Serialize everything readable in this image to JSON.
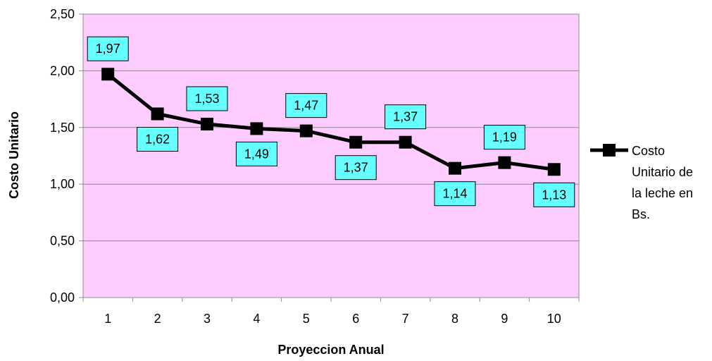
{
  "chart_data": {
    "type": "line",
    "x": [
      1,
      2,
      3,
      4,
      5,
      6,
      7,
      8,
      9,
      10
    ],
    "x_tick_labels": [
      "1",
      "2",
      "3",
      "4",
      "5",
      "6",
      "7",
      "8",
      "9",
      "10"
    ],
    "series": [
      {
        "name": "Costo Unitario de la leche en Bs.",
        "legend_lines": [
          "Costo",
          "Unitario de",
          "la leche en",
          "Bs."
        ],
        "values": [
          1.97,
          1.62,
          1.53,
          1.49,
          1.47,
          1.37,
          1.37,
          1.14,
          1.19,
          1.13
        ],
        "data_labels": [
          "1,97",
          "1,62",
          "1,53",
          "1,49",
          "1,47",
          "1,37",
          "1,37",
          "1,14",
          "1,19",
          "1,13"
        ],
        "label_positions": [
          "above",
          "below",
          "above",
          "below",
          "above",
          "below",
          "above",
          "below",
          "above",
          "below"
        ],
        "color": "#000000",
        "marker": "square"
      }
    ],
    "xlabel": "Proyeccion Anual",
    "ylabel": "Costo Unitario",
    "ylim": [
      0,
      2.5
    ],
    "y_ticks": [
      0,
      0.5,
      1.0,
      1.5,
      2.0,
      2.5
    ],
    "y_tick_labels": [
      "0,00",
      "0,50",
      "1,00",
      "1,50",
      "2,00",
      "2,50"
    ],
    "grid": "horizontal",
    "legend_position": "right",
    "colors": {
      "plot_background": "#FFCCFF",
      "gridline": "#8C8C8C",
      "data_label_fill": "#66FFFF",
      "line": "#000000"
    }
  }
}
